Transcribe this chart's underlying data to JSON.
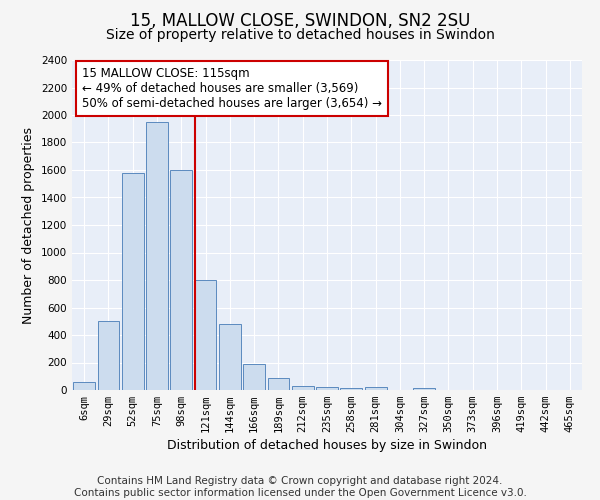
{
  "title": "15, MALLOW CLOSE, SWINDON, SN2 2SU",
  "subtitle": "Size of property relative to detached houses in Swindon",
  "xlabel": "Distribution of detached houses by size in Swindon",
  "ylabel": "Number of detached properties",
  "bar_labels": [
    "6sqm",
    "29sqm",
    "52sqm",
    "75sqm",
    "98sqm",
    "121sqm",
    "144sqm",
    "166sqm",
    "189sqm",
    "212sqm",
    "235sqm",
    "258sqm",
    "281sqm",
    "304sqm",
    "327sqm",
    "350sqm",
    "373sqm",
    "396sqm",
    "419sqm",
    "442sqm",
    "465sqm"
  ],
  "bar_values": [
    55,
    500,
    1580,
    1950,
    1600,
    800,
    480,
    190,
    90,
    30,
    20,
    15,
    20,
    0,
    15,
    0,
    0,
    0,
    0,
    0,
    0
  ],
  "bar_color": "#ccdcee",
  "bar_edge_color": "#5b8abf",
  "vline_x_index": 5,
  "vline_color": "#cc0000",
  "annotation_text": "15 MALLOW CLOSE: 115sqm\n← 49% of detached houses are smaller (3,569)\n50% of semi-detached houses are larger (3,654) →",
  "annotation_box_color": "#ffffff",
  "annotation_box_edge": "#cc0000",
  "ylim": [
    0,
    2400
  ],
  "yticks": [
    0,
    200,
    400,
    600,
    800,
    1000,
    1200,
    1400,
    1600,
    1800,
    2000,
    2200,
    2400
  ],
  "footer_line1": "Contains HM Land Registry data © Crown copyright and database right 2024.",
  "footer_line2": "Contains public sector information licensed under the Open Government Licence v3.0.",
  "plot_bg_color": "#e8eef8",
  "fig_bg_color": "#f5f5f5",
  "grid_color": "#ffffff",
  "title_fontsize": 12,
  "subtitle_fontsize": 10,
  "axis_label_fontsize": 9,
  "tick_fontsize": 7.5,
  "annotation_fontsize": 8.5,
  "footer_fontsize": 7.5
}
